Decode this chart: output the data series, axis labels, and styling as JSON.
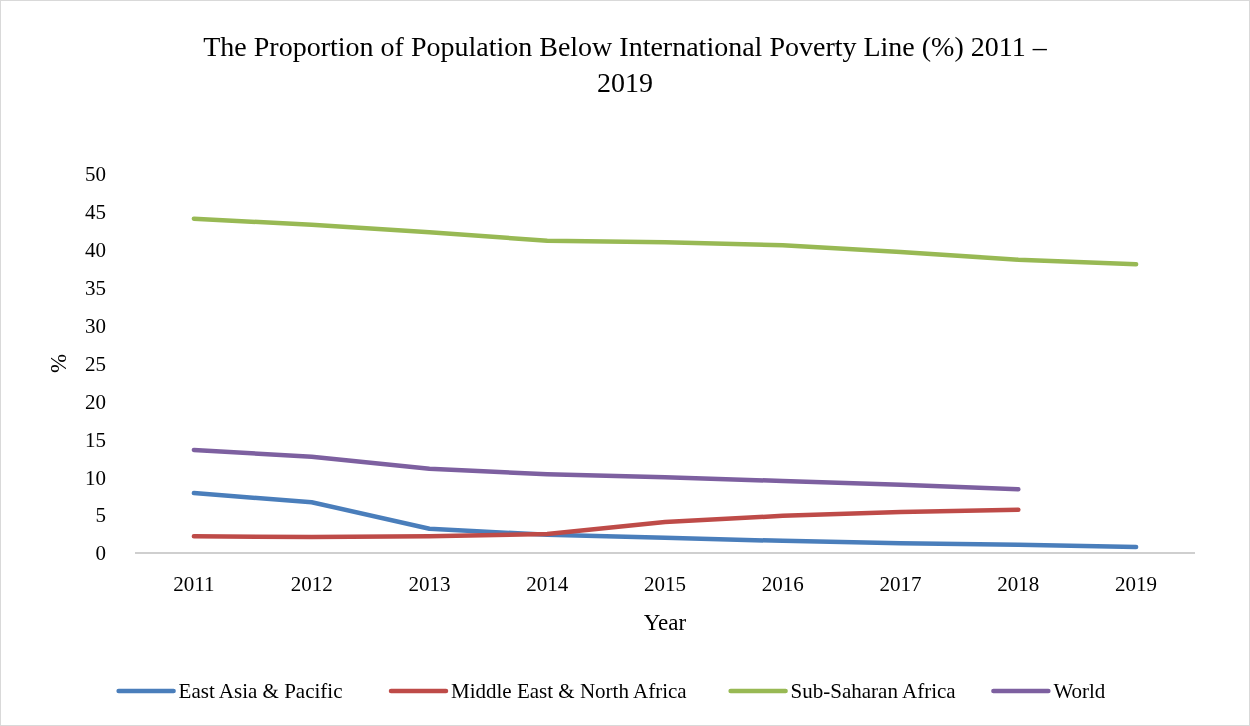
{
  "chart_data": {
    "type": "line",
    "title": "The Proportion of Population Below International Poverty Line (%) 2011 – 2019",
    "xlabel": "Year",
    "ylabel": "%",
    "categories": [
      "2011",
      "2012",
      "2013",
      "2014",
      "2015",
      "2016",
      "2017",
      "2018",
      "2019"
    ],
    "series": [
      {
        "name": "East Asia & Pacific",
        "color": "#4a7ebb",
        "values": [
          7.9,
          6.7,
          3.2,
          2.4,
          2.0,
          1.6,
          1.3,
          1.1,
          0.8
        ]
      },
      {
        "name": "Middle East & North Africa",
        "color": "#be4b48",
        "values": [
          2.2,
          2.1,
          2.2,
          2.5,
          4.1,
          4.9,
          5.4,
          5.7,
          null
        ]
      },
      {
        "name": "Sub-Saharan Africa",
        "color": "#98b954",
        "values": [
          44.1,
          43.3,
          42.3,
          41.2,
          41.0,
          40.6,
          39.7,
          38.7,
          38.1
        ]
      },
      {
        "name": "World",
        "color": "#7d60a0",
        "values": [
          13.6,
          12.7,
          11.1,
          10.4,
          10.0,
          9.5,
          9.0,
          8.4,
          null
        ]
      }
    ],
    "ylim": [
      0,
      50
    ],
    "yticks": [
      0,
      5,
      10,
      15,
      20,
      25,
      30,
      35,
      40,
      45,
      50
    ],
    "grid": false,
    "legend": "bottom",
    "marker": "none",
    "line_style": "solid"
  }
}
